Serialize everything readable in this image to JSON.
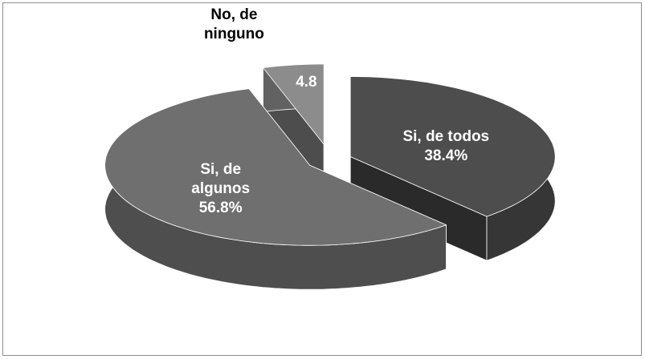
{
  "chart_data": {
    "type": "pie3d",
    "categories": [
      "Si, de todos",
      "Si, de algunos",
      "No, de ninguno"
    ],
    "values": [
      38.4,
      56.8,
      4.8
    ],
    "value_labels": [
      "38.4%",
      "56.8%",
      "4.8"
    ],
    "colors": [
      "#4d4d4d",
      "#6f6f6f",
      "#8c8c8c"
    ]
  }
}
